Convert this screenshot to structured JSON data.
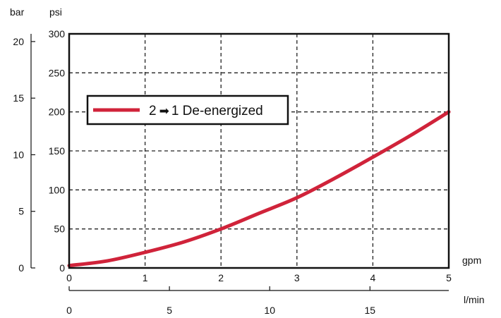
{
  "chart_data": {
    "type": "line",
    "title": "",
    "axes": {
      "x_primary": {
        "label": "gpm",
        "range": [
          0,
          5
        ],
        "ticks": [
          "0",
          "1",
          "2",
          "3",
          "4",
          "5"
        ]
      },
      "x_secondary": {
        "label": "l/min",
        "range": [
          0,
          18.93
        ],
        "ticks": [
          "0",
          "5",
          "10",
          "15"
        ]
      },
      "y_primary": {
        "label": "psi",
        "range": [
          0,
          300
        ],
        "ticks": [
          "0",
          "50",
          "100",
          "150",
          "200",
          "250",
          "300"
        ]
      },
      "y_secondary": {
        "label": "bar",
        "range": [
          0,
          20.68
        ],
        "ticks": [
          "0",
          "5",
          "10",
          "15",
          "20"
        ]
      }
    },
    "grid": true,
    "legend_position": "upper-left",
    "series": [
      {
        "name": "2 → 1 De-energized",
        "color": "#d0233a",
        "x": [
          0,
          0.5,
          1,
          1.5,
          2,
          2.5,
          3,
          3.5,
          4,
          4.5,
          5
        ],
        "y": [
          3,
          9,
          20,
          33,
          50,
          70,
          90,
          115,
          142,
          170,
          200
        ]
      }
    ]
  }
}
